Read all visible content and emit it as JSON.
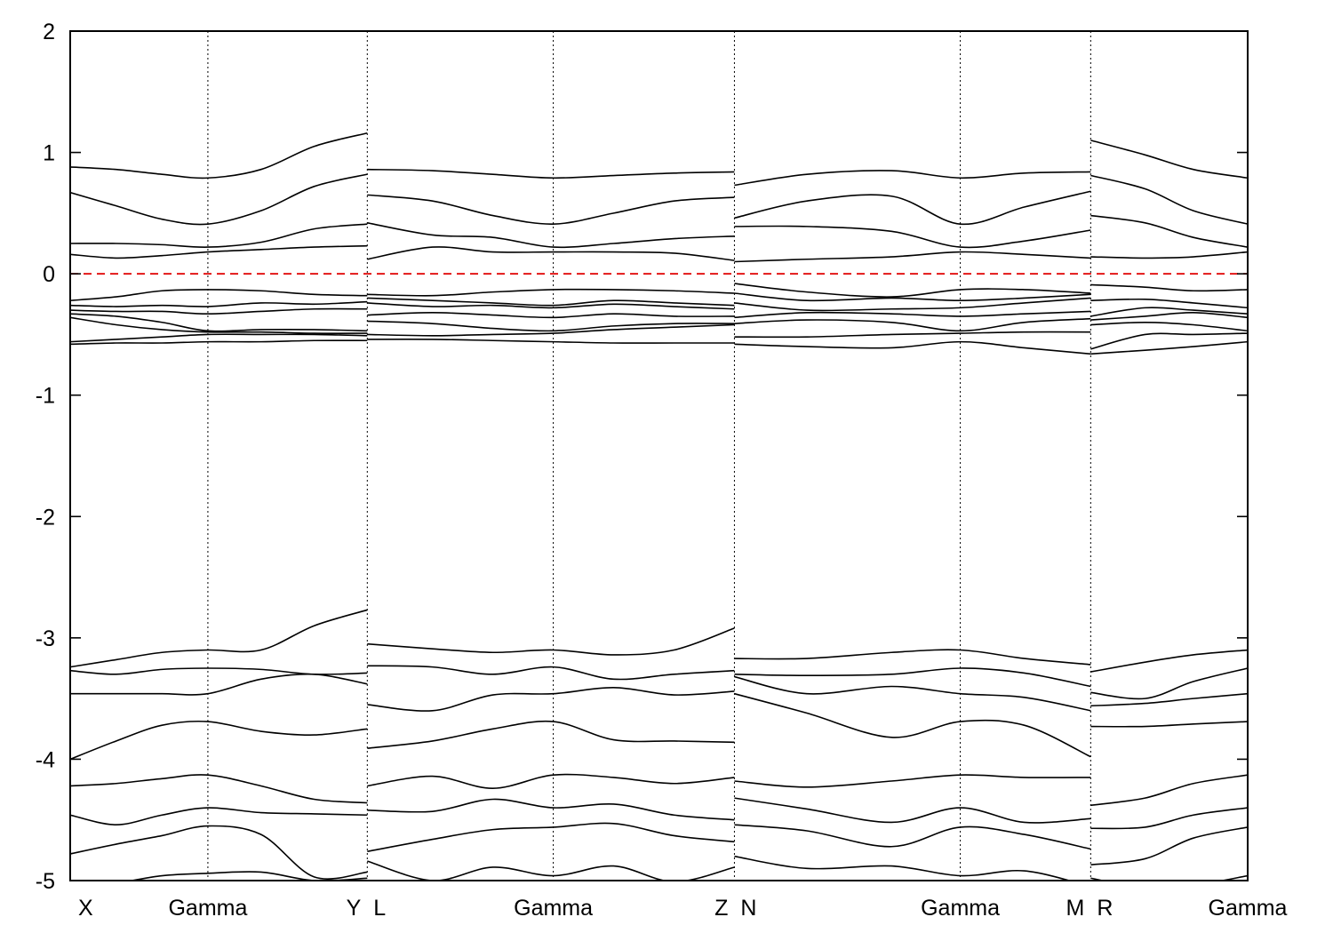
{
  "chart_data": {
    "type": "line",
    "title": "",
    "xlabel": "",
    "ylabel": "",
    "ylim": [
      -5,
      2
    ],
    "yticks": [
      -5,
      -4,
      -3,
      -2,
      -1,
      0,
      1,
      2
    ],
    "fermi_level": 0,
    "colors": {
      "bands": "#000000",
      "fermi": "#e00000"
    },
    "high_symmetry_points": [
      {
        "label": "X",
        "k": 0
      },
      {
        "label": "Gamma",
        "k": 1.14
      },
      {
        "label": "Y",
        "k": 2.46
      },
      {
        "label": "L",
        "k": 2.46
      },
      {
        "label": "Gamma",
        "k": 4.0
      },
      {
        "label": "Z",
        "k": 5.5
      },
      {
        "label": "N",
        "k": 5.5
      },
      {
        "label": "Gamma",
        "k": 7.37
      },
      {
        "label": "M",
        "k": 8.45
      },
      {
        "label": "R",
        "k": 8.45
      },
      {
        "label": "Gamma",
        "k": 9.75
      }
    ],
    "segments": [
      {
        "name": "X-Gamma-Y",
        "k": [
          0,
          0.38,
          0.76,
          1.14,
          1.58,
          2.02,
          2.46
        ],
        "bands": [
          [
            0.88,
            0.86,
            0.82,
            0.79,
            0.86,
            1.05,
            1.16
          ],
          [
            0.67,
            0.56,
            0.45,
            0.41,
            0.52,
            0.72,
            0.82
          ],
          [
            0.25,
            0.25,
            0.24,
            0.22,
            0.26,
            0.37,
            0.41
          ],
          [
            0.16,
            0.13,
            0.15,
            0.18,
            0.2,
            0.22,
            0.23
          ],
          [
            -0.22,
            -0.19,
            -0.14,
            -0.13,
            -0.14,
            -0.17,
            -0.18
          ],
          [
            -0.26,
            -0.27,
            -0.26,
            -0.27,
            -0.24,
            -0.25,
            -0.23
          ],
          [
            -0.3,
            -0.31,
            -0.31,
            -0.33,
            -0.31,
            -0.29,
            -0.29
          ],
          [
            -0.33,
            -0.35,
            -0.4,
            -0.47,
            -0.46,
            -0.46,
            -0.47
          ],
          [
            -0.36,
            -0.42,
            -0.46,
            -0.48,
            -0.48,
            -0.49,
            -0.49
          ],
          [
            -0.56,
            -0.54,
            -0.52,
            -0.5,
            -0.5,
            -0.5,
            -0.51
          ],
          [
            -0.58,
            -0.57,
            -0.57,
            -0.56,
            -0.56,
            -0.55,
            -0.55
          ],
          [
            -3.24,
            -3.18,
            -3.12,
            -3.1,
            -3.1,
            -2.9,
            -2.77
          ],
          [
            -3.27,
            -3.3,
            -3.26,
            -3.25,
            -3.26,
            -3.3,
            -3.29
          ],
          [
            -3.46,
            -3.46,
            -3.46,
            -3.46,
            -3.34,
            -3.3,
            -3.38
          ],
          [
            -4.0,
            -3.85,
            -3.72,
            -3.69,
            -3.77,
            -3.8,
            -3.75
          ],
          [
            -4.22,
            -4.2,
            -4.16,
            -4.13,
            -4.22,
            -4.33,
            -4.36
          ],
          [
            -4.46,
            -4.54,
            -4.46,
            -4.4,
            -4.44,
            -4.45,
            -4.46
          ],
          [
            -4.78,
            -4.7,
            -4.63,
            -4.55,
            -4.62,
            -4.97,
            -4.93
          ],
          [
            -5.05,
            -5.02,
            -4.96,
            -4.94,
            -4.93,
            -5.0,
            -4.98
          ]
        ]
      },
      {
        "name": "L-Gamma-Z",
        "k": [
          2.46,
          3.0,
          3.5,
          4.0,
          4.5,
          5.0,
          5.5
        ],
        "bands": [
          [
            0.86,
            0.85,
            0.82,
            0.79,
            0.81,
            0.83,
            0.84
          ],
          [
            0.65,
            0.6,
            0.48,
            0.41,
            0.5,
            0.6,
            0.63
          ],
          [
            0.42,
            0.32,
            0.3,
            0.22,
            0.25,
            0.29,
            0.31
          ],
          [
            0.12,
            0.22,
            0.18,
            0.18,
            0.18,
            0.17,
            0.11
          ],
          [
            -0.17,
            -0.18,
            -0.15,
            -0.13,
            -0.13,
            -0.14,
            -0.16
          ],
          [
            -0.2,
            -0.22,
            -0.24,
            -0.26,
            -0.22,
            -0.24,
            -0.26
          ],
          [
            -0.24,
            -0.27,
            -0.26,
            -0.28,
            -0.25,
            -0.27,
            -0.29
          ],
          [
            -0.34,
            -0.32,
            -0.34,
            -0.36,
            -0.33,
            -0.35,
            -0.35
          ],
          [
            -0.39,
            -0.41,
            -0.45,
            -0.47,
            -0.43,
            -0.41,
            -0.41
          ],
          [
            -0.5,
            -0.51,
            -0.5,
            -0.49,
            -0.46,
            -0.44,
            -0.42
          ],
          [
            -0.54,
            -0.54,
            -0.55,
            -0.56,
            -0.57,
            -0.57,
            -0.57
          ],
          [
            -3.05,
            -3.09,
            -3.12,
            -3.1,
            -3.14,
            -3.1,
            -2.92
          ],
          [
            -3.23,
            -3.24,
            -3.3,
            -3.24,
            -3.34,
            -3.3,
            -3.27
          ],
          [
            -3.55,
            -3.6,
            -3.47,
            -3.46,
            -3.41,
            -3.47,
            -3.44
          ],
          [
            -3.91,
            -3.85,
            -3.75,
            -3.69,
            -3.84,
            -3.85,
            -3.86
          ],
          [
            -4.22,
            -4.14,
            -4.24,
            -4.13,
            -4.15,
            -4.2,
            -4.15
          ],
          [
            -4.42,
            -4.43,
            -4.33,
            -4.4,
            -4.37,
            -4.46,
            -4.5
          ],
          [
            -4.76,
            -4.66,
            -4.58,
            -4.56,
            -4.53,
            -4.63,
            -4.68
          ],
          [
            -4.84,
            -5.0,
            -4.89,
            -4.96,
            -4.88,
            -5.01,
            -4.89
          ]
        ]
      },
      {
        "name": "N-Gamma-M",
        "k": [
          5.5,
          6.1,
          6.8,
          7.37,
          7.9,
          8.45
        ],
        "bands": [
          [
            0.73,
            0.82,
            0.85,
            0.79,
            0.83,
            0.84
          ],
          [
            0.46,
            0.6,
            0.64,
            0.41,
            0.55,
            0.68
          ],
          [
            0.39,
            0.39,
            0.35,
            0.22,
            0.27,
            0.36
          ],
          [
            0.1,
            0.12,
            0.14,
            0.18,
            0.16,
            0.13
          ],
          [
            -0.08,
            -0.15,
            -0.19,
            -0.13,
            -0.13,
            -0.16
          ],
          [
            -0.16,
            -0.22,
            -0.2,
            -0.22,
            -0.2,
            -0.17
          ],
          [
            -0.24,
            -0.3,
            -0.29,
            -0.28,
            -0.24,
            -0.2
          ],
          [
            -0.36,
            -0.32,
            -0.33,
            -0.35,
            -0.33,
            -0.31
          ],
          [
            -0.41,
            -0.38,
            -0.4,
            -0.47,
            -0.4,
            -0.37
          ],
          [
            -0.52,
            -0.52,
            -0.5,
            -0.49,
            -0.48,
            -0.48
          ],
          [
            -0.58,
            -0.6,
            -0.61,
            -0.56,
            -0.61,
            -0.66
          ],
          [
            -3.17,
            -3.17,
            -3.12,
            -3.1,
            -3.17,
            -3.22
          ],
          [
            -3.3,
            -3.31,
            -3.3,
            -3.25,
            -3.29,
            -3.4
          ],
          [
            -3.32,
            -3.46,
            -3.4,
            -3.46,
            -3.49,
            -3.6
          ],
          [
            -3.46,
            -3.62,
            -3.82,
            -3.69,
            -3.72,
            -3.98
          ],
          [
            -4.18,
            -4.23,
            -4.18,
            -4.13,
            -4.15,
            -4.15
          ],
          [
            -4.32,
            -4.41,
            -4.52,
            -4.4,
            -4.52,
            -4.49
          ],
          [
            -4.54,
            -4.59,
            -4.72,
            -4.56,
            -4.62,
            -4.74
          ],
          [
            -4.8,
            -4.9,
            -4.88,
            -4.96,
            -4.92,
            -5.05
          ]
        ]
      },
      {
        "name": "R-Gamma",
        "k": [
          8.45,
          8.9,
          9.3,
          9.75
        ],
        "bands": [
          [
            1.1,
            0.98,
            0.86,
            0.79
          ],
          [
            0.81,
            0.7,
            0.52,
            0.41
          ],
          [
            0.48,
            0.42,
            0.3,
            0.22
          ],
          [
            0.14,
            0.13,
            0.14,
            0.18
          ],
          [
            -0.09,
            -0.11,
            -0.14,
            -0.13
          ],
          [
            -0.22,
            -0.21,
            -0.24,
            -0.28
          ],
          [
            -0.35,
            -0.28,
            -0.3,
            -0.33
          ],
          [
            -0.38,
            -0.35,
            -0.32,
            -0.36
          ],
          [
            -0.42,
            -0.4,
            -0.42,
            -0.47
          ],
          [
            -0.62,
            -0.5,
            -0.5,
            -0.49
          ],
          [
            -0.66,
            -0.63,
            -0.6,
            -0.56
          ],
          [
            -3.28,
            -3.2,
            -3.14,
            -3.1
          ],
          [
            -3.45,
            -3.5,
            -3.36,
            -3.25
          ],
          [
            -3.56,
            -3.54,
            -3.5,
            -3.46
          ],
          [
            -3.73,
            -3.73,
            -3.71,
            -3.69
          ],
          [
            -4.38,
            -4.32,
            -4.2,
            -4.13
          ],
          [
            -4.57,
            -4.56,
            -4.46,
            -4.4
          ],
          [
            -4.87,
            -4.82,
            -4.65,
            -4.56
          ],
          [
            -4.98,
            -5.06,
            -5.04,
            -4.96
          ]
        ]
      }
    ]
  }
}
